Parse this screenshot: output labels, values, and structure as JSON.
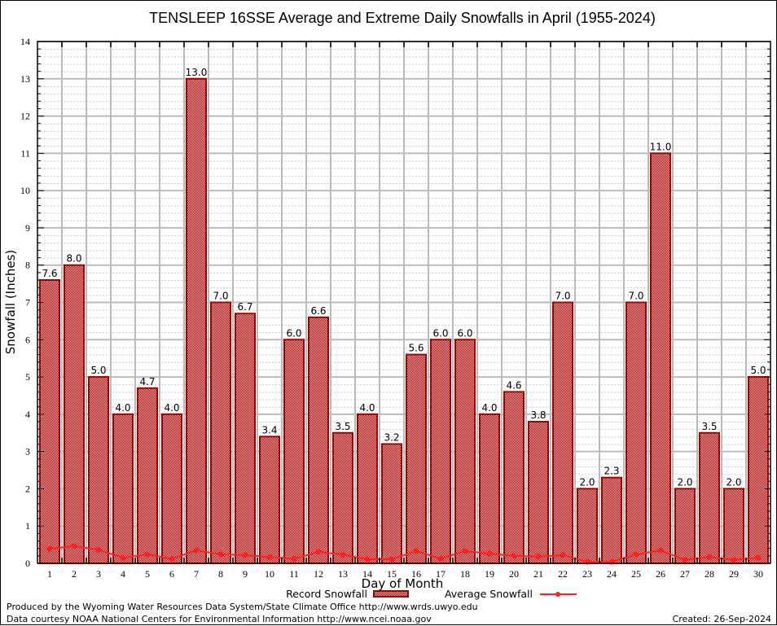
{
  "chart_data": {
    "type": "bar",
    "title": "TENSLEEP 16SSE Average and Extreme Daily Snowfalls in April (1955-2024)",
    "xlabel": "Day of Month",
    "ylabel": "Snowfall (Inches)",
    "ylim": [
      0,
      14
    ],
    "yticks": [
      0,
      1,
      2,
      3,
      4,
      5,
      6,
      7,
      8,
      9,
      10,
      11,
      12,
      13,
      14
    ],
    "grid": true,
    "legend_position": "bottom-center",
    "categories": [
      "1",
      "2",
      "3",
      "4",
      "5",
      "6",
      "7",
      "8",
      "9",
      "10",
      "11",
      "12",
      "13",
      "14",
      "15",
      "16",
      "17",
      "18",
      "19",
      "20",
      "21",
      "22",
      "23",
      "24",
      "25",
      "26",
      "27",
      "28",
      "29",
      "30"
    ],
    "series": [
      {
        "name": "Record Snowfall",
        "type": "bar",
        "color": "#990000",
        "values": [
          7.6,
          8.0,
          5.0,
          4.0,
          4.7,
          4.0,
          13.0,
          7.0,
          6.7,
          3.4,
          6.0,
          6.6,
          3.5,
          4.0,
          3.2,
          5.6,
          6.0,
          6.0,
          4.0,
          4.6,
          3.8,
          7.0,
          2.0,
          2.3,
          7.0,
          11.0,
          2.0,
          3.5,
          2.0,
          5.0
        ],
        "labels": [
          "7.6",
          "8.0",
          "5.0",
          "4.0",
          "4.7",
          "4.0",
          "13.0",
          "7.0",
          "6.7",
          "3.4",
          "6.0",
          "6.6",
          "3.5",
          "4.0",
          "3.2",
          "5.6",
          "6.0",
          "6.0",
          "4.0",
          "4.6",
          "3.8",
          "7.0",
          "2.0",
          "2.3",
          "7.0",
          "11.0",
          "2.0",
          "3.5",
          "2.0",
          "5.0"
        ]
      },
      {
        "name": "Average Snowfall",
        "type": "line",
        "color": "#ff2020",
        "values": [
          0.39,
          0.46,
          0.36,
          0.15,
          0.24,
          0.12,
          0.35,
          0.24,
          0.22,
          0.17,
          0.12,
          0.31,
          0.23,
          0.11,
          0.11,
          0.33,
          0.13,
          0.33,
          0.26,
          0.2,
          0.18,
          0.22,
          0.04,
          0.04,
          0.24,
          0.35,
          0.09,
          0.17,
          0.09,
          0.15
        ]
      }
    ]
  },
  "footer": {
    "line1": "Produced by the Wyoming Water Resources Data System/State Climate Office http://www.wrds.uwyo.edu",
    "line2": "Data courtesy NOAA National Centers for Environmental Information http://www.ncei.noaa.gov",
    "created": "Created: 26-Sep-2024"
  }
}
